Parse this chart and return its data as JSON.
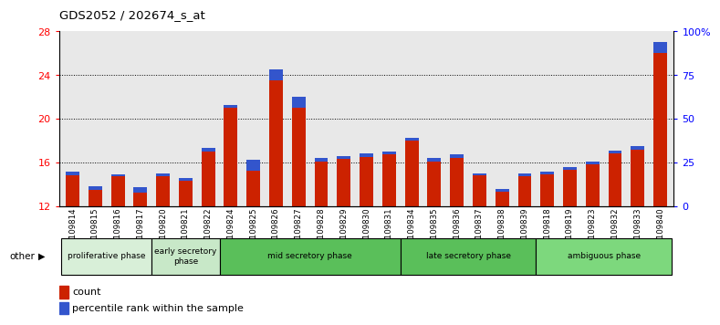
{
  "title": "GDS2052 / 202674_s_at",
  "samples": [
    "GSM109814",
    "GSM109815",
    "GSM109816",
    "GSM109817",
    "GSM109820",
    "GSM109821",
    "GSM109822",
    "GSM109824",
    "GSM109825",
    "GSM109826",
    "GSM109827",
    "GSM109828",
    "GSM109829",
    "GSM109830",
    "GSM109831",
    "GSM109834",
    "GSM109835",
    "GSM109836",
    "GSM109837",
    "GSM109838",
    "GSM109839",
    "GSM109818",
    "GSM109819",
    "GSM109823",
    "GSM109832",
    "GSM109833",
    "GSM109840"
  ],
  "count_values": [
    14.8,
    13.5,
    14.7,
    13.2,
    14.7,
    14.3,
    17.0,
    21.0,
    15.2,
    23.5,
    21.0,
    16.1,
    16.3,
    16.5,
    16.7,
    18.0,
    16.1,
    16.4,
    14.8,
    13.3,
    14.7,
    14.9,
    15.3,
    15.8,
    16.8,
    17.2,
    26.0
  ],
  "percentile_values": [
    0.35,
    0.35,
    0.22,
    0.55,
    0.3,
    0.3,
    0.3,
    0.22,
    1.0,
    1.0,
    1.0,
    0.3,
    0.3,
    0.3,
    0.3,
    0.26,
    0.3,
    0.3,
    0.22,
    0.22,
    0.26,
    0.26,
    0.26,
    0.26,
    0.26,
    0.26,
    1.0
  ],
  "phases": [
    {
      "label": "proliferative phase",
      "start": 0,
      "end": 4,
      "color": "#d8efd8"
    },
    {
      "label": "early secretory\nphase",
      "start": 4,
      "end": 7,
      "color": "#c8e8c8"
    },
    {
      "label": "mid secretory phase",
      "start": 7,
      "end": 15,
      "color": "#5abf5a"
    },
    {
      "label": "late secretory phase",
      "start": 15,
      "end": 21,
      "color": "#5abf5a"
    },
    {
      "label": "ambiguous phase",
      "start": 21,
      "end": 27,
      "color": "#7dd87d"
    }
  ],
  "bar_color_red": "#cc2200",
  "bar_color_blue": "#3355cc",
  "ylim_left": [
    12,
    28
  ],
  "ylim_right": [
    0,
    100
  ],
  "yticks_left": [
    12,
    16,
    20,
    24,
    28
  ],
  "yticks_right": [
    0,
    25,
    50,
    75,
    100
  ],
  "ylabel_right_labels": [
    "0",
    "25",
    "50",
    "75",
    "100%"
  ],
  "plot_bgcolor": "#e8e8e8",
  "fig_bgcolor": "#ffffff"
}
